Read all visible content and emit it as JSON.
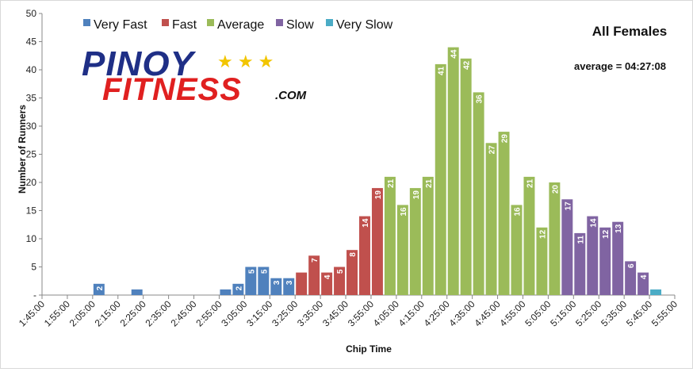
{
  "chart_data": {
    "type": "bar",
    "title": "All Females",
    "annotation": "average = 04:27:08",
    "xlabel": "Chip Time",
    "ylabel": "Number of Runners",
    "ylim": [
      0,
      50
    ],
    "yticks": [
      "-",
      "5",
      "10",
      "15",
      "20",
      "25",
      "30",
      "35",
      "40",
      "45",
      "50"
    ],
    "xticks": [
      "1:45:00",
      "1:55:00",
      "2:05:00",
      "2:15:00",
      "2:25:00",
      "2:35:00",
      "2:45:00",
      "2:55:00",
      "3:05:00",
      "3:15:00",
      "3:25:00",
      "3:35:00",
      "3:45:00",
      "3:55:00",
      "4:05:00",
      "4:15:00",
      "4:25:00",
      "4:35:00",
      "4:45:00",
      "4:55:00",
      "5:05:00",
      "5:15:00",
      "5:25:00",
      "5:35:00",
      "5:45:00",
      "5:55:00"
    ],
    "bin_minutes": 5,
    "start_time": "1:45:00",
    "legend_position": "top-left",
    "grid": false,
    "series": [
      {
        "name": "Very Fast",
        "color": "#4f81bd",
        "first_bin": "2:10:00",
        "values": [
          2,
          0,
          0,
          1,
          0,
          0,
          0,
          0,
          0,
          0,
          1,
          2,
          5,
          5,
          3,
          3
        ]
      },
      {
        "name": "Fast",
        "color": "#c0504d",
        "first_bin": "3:30:00",
        "values": [
          4,
          7,
          4,
          5,
          8,
          14,
          19
        ]
      },
      {
        "name": "Average",
        "color": "#9bbb59",
        "first_bin": "4:05:00",
        "values": [
          21,
          16,
          19,
          21,
          41,
          44,
          42,
          36,
          27,
          29,
          16,
          21,
          12,
          20
        ]
      },
      {
        "name": "Slow",
        "color": "#8064a2",
        "first_bin": "5:15:00",
        "values": [
          17,
          11,
          14,
          12,
          13,
          6,
          4
        ]
      },
      {
        "name": "Very Slow",
        "color": "#4bacc6",
        "first_bin": "5:50:00",
        "values": [
          1
        ]
      }
    ],
    "value_labels": [
      {
        "series": "Very Fast",
        "first_bin": "2:10:00",
        "labels": [
          "2",
          "",
          "",
          "",
          "",
          "",
          "",
          "",
          "",
          "",
          "",
          "2",
          "5",
          "5",
          "3",
          "3"
        ]
      },
      {
        "series": "Fast",
        "first_bin": "3:30:00",
        "labels": [
          "",
          "7",
          "4",
          "5",
          "8",
          "14",
          "19"
        ]
      },
      {
        "series": "Average",
        "first_bin": "4:05:00",
        "labels": [
          "21",
          "16",
          "19",
          "21",
          "41",
          "44",
          "42",
          "36",
          "27",
          "29",
          "16",
          "21",
          "12",
          "20"
        ]
      },
      {
        "series": "Slow",
        "first_bin": "5:15:00",
        "labels": [
          "17",
          "11",
          "14",
          "12",
          "13",
          "6",
          "4"
        ]
      },
      {
        "series": "Very Slow",
        "first_bin": "5:50:00",
        "labels": [
          ""
        ]
      }
    ]
  },
  "logo": {
    "line1": "PINOY",
    "line2": "FITNESS",
    "suffix": ".COM",
    "stars": "★ ★ ★",
    "star_color": "#f2c500",
    "primary_color": "#1f2f86",
    "accent_color": "#e02020"
  }
}
